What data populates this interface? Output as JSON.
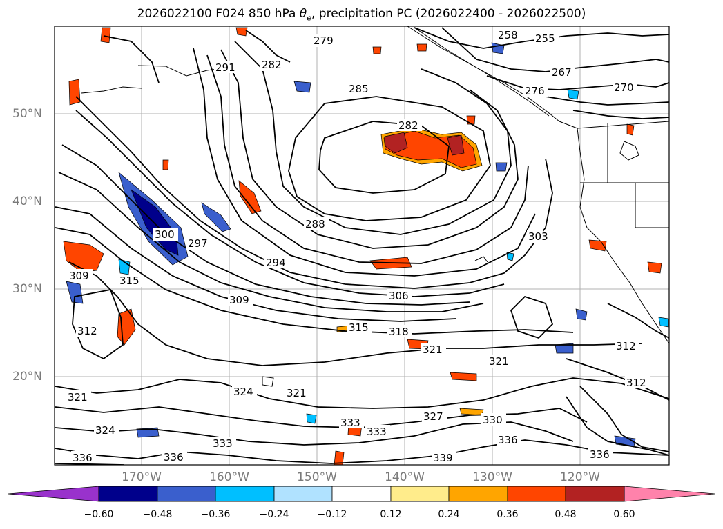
{
  "title_main": "2026022100 F024 850 hPa ",
  "title_symbol": "θ",
  "title_sub": "e",
  "title_rest": ", precipitation PC (2026022400 - 2026022500)",
  "latitude_labels": [
    "50°N",
    "40°N",
    "30°N",
    "20°N"
  ],
  "longitude_labels": [
    "170°W",
    "160°W",
    "150°W",
    "140°W",
    "130°W",
    "120°W"
  ],
  "colorbar": {
    "tick_labels": [
      "−0.60",
      "−0.48",
      "−0.36",
      "−0.24",
      "−0.12",
      "0.12",
      "0.24",
      "0.36",
      "0.48",
      "0.60"
    ],
    "colors": [
      "#9932cc",
      "#00008b",
      "#3a5fcd",
      "#00bfff",
      "#b0e2ff",
      "#ffffff",
      "#ffec8b",
      "#ffa500",
      "#ff4500",
      "#b22222",
      "#ff82ab"
    ]
  },
  "contour_labels": [
    "279",
    "282",
    "285",
    "282",
    "288",
    "294",
    "297",
    "300",
    "303",
    "306",
    "309",
    "312",
    "315",
    "318",
    "321",
    "321",
    "321",
    "324",
    "327",
    "330",
    "333",
    "333",
    "333",
    "336",
    "336",
    "339",
    "255",
    "258",
    "267",
    "270",
    "276",
    "291",
    "309",
    "312",
    "312",
    "315",
    "321",
    "324",
    "336",
    "336"
  ]
}
